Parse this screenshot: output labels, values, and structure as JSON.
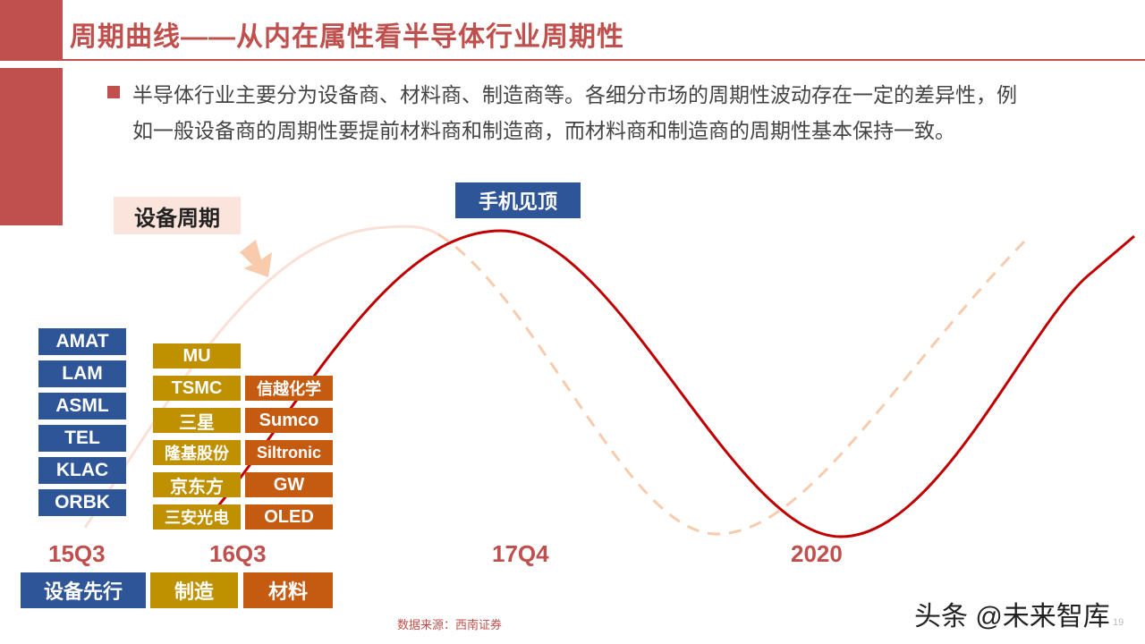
{
  "title": "周期曲线——从内在属性看半导体行业周期性",
  "description": {
    "line1": "半导体行业主要分为设备商、材料商、制造商等。各细分市场的周期性波动存在一定的差异性，例",
    "line2": "如一般设备商的周期性要提前材料商和制造商，而材料商和制造商的周期性基本保持一致。"
  },
  "labels": {
    "device_cycle": "设备周期",
    "phone_peak": "手机见顶"
  },
  "equipment_companies": [
    "AMAT",
    "LAM",
    "ASML",
    "TEL",
    "KLAC",
    "ORBK"
  ],
  "manufacturing_companies": [
    "MU",
    "TSMC",
    "三星",
    "隆基股份",
    "京东方",
    "三安光电"
  ],
  "materials_companies": [
    "信越化学",
    "Sumco",
    "Siltronic",
    "GW",
    "OLED"
  ],
  "time_axis": [
    "15Q3",
    "16Q3",
    "17Q4",
    "2020"
  ],
  "legend": {
    "equipment": "设备先行",
    "manufacturing": "制造",
    "materials": "材料"
  },
  "source": "数据来源：西南证券",
  "watermark": "头条 @未来智库",
  "page_number": "19",
  "colors": {
    "accent_red": "#c0504d",
    "curve_red": "#c00000",
    "equipment_blue": "#2e5597",
    "manufacturing_gold": "#bf9000",
    "materials_orange": "#c55a11",
    "faded_curve": "#f8cbad"
  }
}
